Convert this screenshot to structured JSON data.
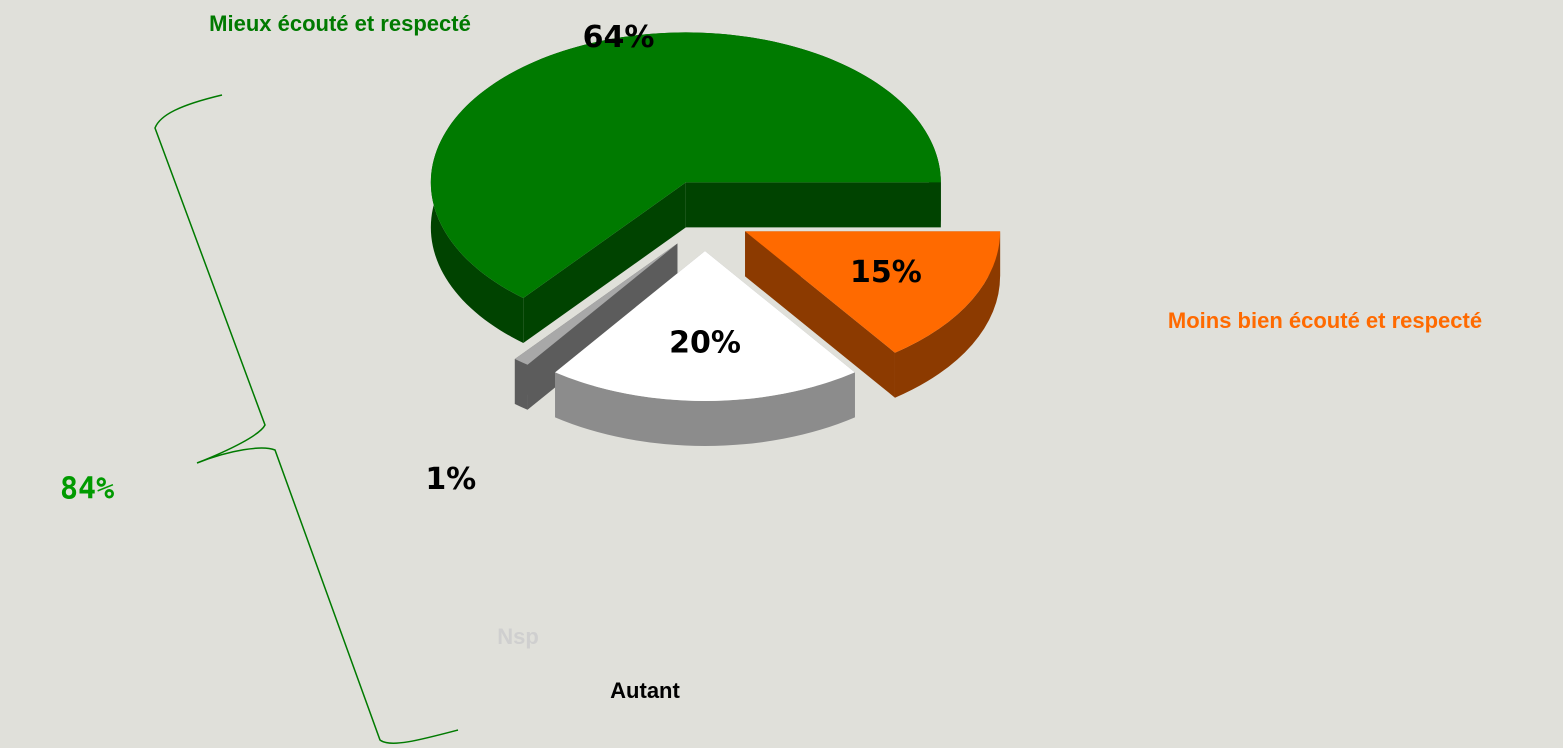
{
  "chart_data": {
    "type": "pie",
    "categories": [
      "Moins bien écouté et respecté",
      "Autant",
      "Nsp",
      "Mieux écouté et respecté"
    ],
    "values": [
      15,
      20,
      1,
      64
    ],
    "value_labels": [
      "15%",
      "20%",
      "1%",
      "64%"
    ],
    "colors": [
      "#ff6a00",
      "#ffffff",
      "#a8a8a8",
      "#007a00"
    ],
    "annotation": "84%"
  }
}
